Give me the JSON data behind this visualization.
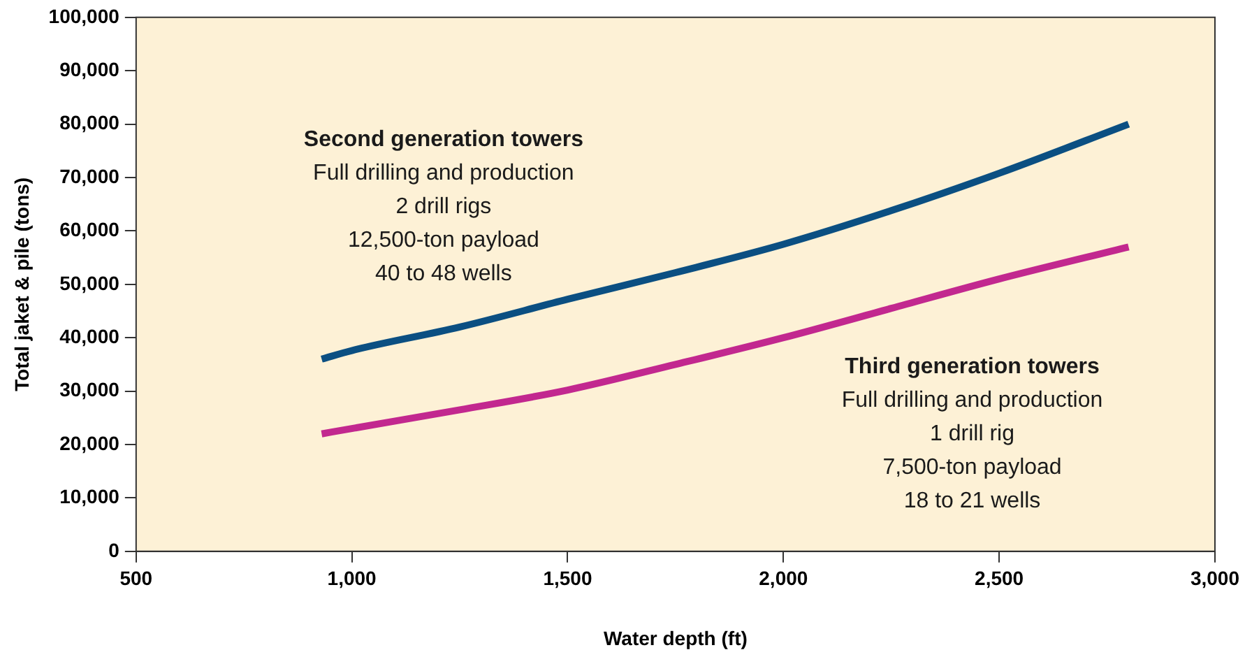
{
  "chart_data": {
    "type": "line",
    "xlabel": "Water depth (ft)",
    "ylabel": "Total jaket & pile (tons)",
    "x": [
      930,
      1000,
      1250,
      1500,
      1750,
      2000,
      2250,
      2500,
      2800
    ],
    "series": [
      {
        "color": "#0b4f82",
        "values": [
          36000,
          37600,
          42000,
          47200,
          52200,
          57500,
          63800,
          70800,
          80000
        ]
      },
      {
        "color": "#c2288f",
        "values": [
          22000,
          23000,
          26500,
          30200,
          35000,
          40000,
          45500,
          51000,
          57000
        ]
      }
    ],
    "annotations": [
      "Second generation towers",
      "Full drilling and production",
      "2 drill rigs",
      "12,500-ton payload",
      "40 to 48 wells",
      "Third generation towers",
      "Full drilling and production",
      "1 drill rig",
      "7,500-ton payload",
      "18 to 21 wells"
    ],
    "xlim": [
      500,
      3000
    ],
    "xticks": [
      500,
      {
        "value": 1000,
        "label": "1,000"
      },
      {
        "value": 1500,
        "label": "1,500"
      },
      {
        "value": 2000,
        "label": "2,000"
      },
      {
        "value": 2500,
        "label": "2,500"
      },
      {
        "value": 3000,
        "label": "3,000"
      }
    ],
    "ylim": [
      0,
      100000
    ],
    "yticks": [
      0,
      {
        "value": 10000,
        "label": "10,000"
      },
      {
        "value": 20000,
        "label": "20,000"
      },
      {
        "value": 30000,
        "label": "30,000"
      },
      {
        "value": 40000,
        "label": "40,000"
      },
      {
        "value": 50000,
        "label": "50,000"
      },
      {
        "value": 60000,
        "label": "60,000"
      },
      {
        "value": 70000,
        "label": "70,000"
      },
      {
        "value": 80000,
        "label": "80,000"
      },
      {
        "value": 90000,
        "label": "90,000"
      },
      {
        "value": 100000,
        "label": "100,000"
      }
    ],
    "grid": false,
    "legend": false,
    "marker": "none",
    "line_style": "solid"
  }
}
